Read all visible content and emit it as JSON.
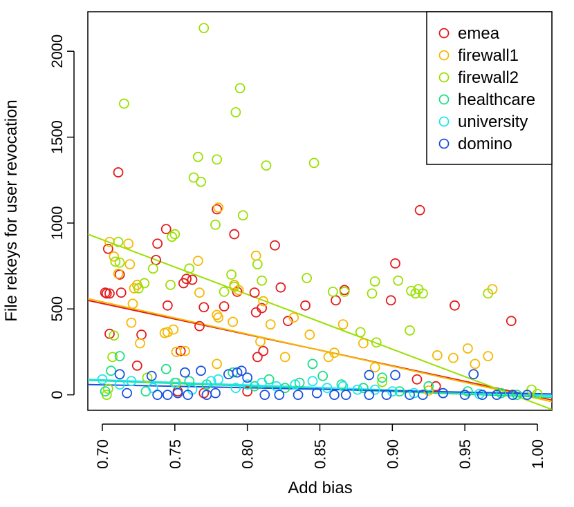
{
  "chart_data": {
    "type": "scatter",
    "title": "",
    "xlabel": "Add bias",
    "ylabel": "File rekeys for user revocation",
    "xlim": [
      0.69,
      1.01
    ],
    "ylim": [
      -90,
      2230
    ],
    "xticks": [
      0.7,
      0.75,
      0.8,
      0.85,
      0.9,
      0.95,
      1.0
    ],
    "yticks": [
      0,
      500,
      1000,
      1500,
      2000
    ],
    "xtick_labels": [
      "0.70",
      "0.75",
      "0.80",
      "0.85",
      "0.90",
      "0.95",
      "1.00"
    ],
    "ytick_labels": [
      "0",
      "500",
      "1000",
      "1500",
      "2000"
    ],
    "grid": false,
    "legend_position": "top-right",
    "series": [
      {
        "name": "emea",
        "color": "#E41A1C",
        "fit": {
          "x0": 0.69,
          "y0": 550,
          "x1": 1.01,
          "y1": -30
        },
        "points": [
          [
            0.702,
            595
          ],
          [
            0.703,
            590
          ],
          [
            0.704,
            850
          ],
          [
            0.705,
            590
          ],
          [
            0.705,
            355
          ],
          [
            0.711,
            1295
          ],
          [
            0.712,
            700
          ],
          [
            0.713,
            595
          ],
          [
            0.724,
            170
          ],
          [
            0.727,
            350
          ],
          [
            0.737,
            785
          ],
          [
            0.738,
            880
          ],
          [
            0.744,
            965
          ],
          [
            0.745,
            520
          ],
          [
            0.754,
            255
          ],
          [
            0.756,
            650
          ],
          [
            0.758,
            675
          ],
          [
            0.762,
            670
          ],
          [
            0.767,
            400
          ],
          [
            0.77,
            510
          ],
          [
            0.779,
            1080
          ],
          [
            0.784,
            515
          ],
          [
            0.791,
            935
          ],
          [
            0.793,
            600
          ],
          [
            0.805,
            595
          ],
          [
            0.806,
            480
          ],
          [
            0.807,
            220
          ],
          [
            0.81,
            505
          ],
          [
            0.811,
            255
          ],
          [
            0.819,
            870
          ],
          [
            0.823,
            625
          ],
          [
            0.828,
            430
          ],
          [
            0.84,
            520
          ],
          [
            0.861,
            550
          ],
          [
            0.867,
            610
          ],
          [
            0.899,
            550
          ],
          [
            0.902,
            765
          ],
          [
            0.919,
            1075
          ],
          [
            0.917,
            90
          ],
          [
            0.93,
            50
          ],
          [
            0.943,
            520
          ],
          [
            0.982,
            430
          ],
          [
            0.752,
            20
          ],
          [
            0.77,
            10
          ],
          [
            0.8,
            20
          ]
        ]
      },
      {
        "name": "firewall1",
        "color": "#F5B800",
        "fit": {
          "x0": 0.69,
          "y0": 560,
          "x1": 1.01,
          "y1": -40
        },
        "points": [
          [
            0.705,
            890
          ],
          [
            0.708,
            805
          ],
          [
            0.711,
            705
          ],
          [
            0.718,
            880
          ],
          [
            0.719,
            760
          ],
          [
            0.72,
            420
          ],
          [
            0.721,
            530
          ],
          [
            0.722,
            620
          ],
          [
            0.724,
            640
          ],
          [
            0.726,
            300
          ],
          [
            0.743,
            360
          ],
          [
            0.745,
            365
          ],
          [
            0.749,
            380
          ],
          [
            0.751,
            250
          ],
          [
            0.757,
            255
          ],
          [
            0.766,
            780
          ],
          [
            0.767,
            595
          ],
          [
            0.779,
            180
          ],
          [
            0.78,
            1090
          ],
          [
            0.779,
            465
          ],
          [
            0.78,
            450
          ],
          [
            0.79,
            425
          ],
          [
            0.791,
            640
          ],
          [
            0.794,
            610
          ],
          [
            0.806,
            810
          ],
          [
            0.809,
            310
          ],
          [
            0.811,
            545
          ],
          [
            0.816,
            410
          ],
          [
            0.826,
            220
          ],
          [
            0.832,
            450
          ],
          [
            0.843,
            350
          ],
          [
            0.856,
            220
          ],
          [
            0.86,
            245
          ],
          [
            0.866,
            410
          ],
          [
            0.88,
            300
          ],
          [
            0.888,
            160
          ],
          [
            0.925,
            25
          ],
          [
            0.931,
            230
          ],
          [
            0.942,
            215
          ],
          [
            0.952,
            270
          ],
          [
            0.957,
            180
          ],
          [
            0.966,
            225
          ],
          [
            0.969,
            615
          ]
        ]
      },
      {
        "name": "firewall2",
        "color": "#99E000",
        "fit": {
          "x0": 0.69,
          "y0": 935,
          "x1": 1.01,
          "y1": -85
        },
        "points": [
          [
            0.703,
            0
          ],
          [
            0.704,
            35
          ],
          [
            0.707,
            220
          ],
          [
            0.708,
            345
          ],
          [
            0.709,
            775
          ],
          [
            0.712,
            770
          ],
          [
            0.715,
            1695
          ],
          [
            0.711,
            890
          ],
          [
            0.725,
            620
          ],
          [
            0.729,
            650
          ],
          [
            0.735,
            735
          ],
          [
            0.747,
            640
          ],
          [
            0.748,
            920
          ],
          [
            0.75,
            935
          ],
          [
            0.76,
            735
          ],
          [
            0.763,
            1265
          ],
          [
            0.766,
            1385
          ],
          [
            0.768,
            1240
          ],
          [
            0.77,
            2135
          ],
          [
            0.778,
            990
          ],
          [
            0.779,
            1370
          ],
          [
            0.784,
            600
          ],
          [
            0.789,
            700
          ],
          [
            0.791,
            630
          ],
          [
            0.792,
            1645
          ],
          [
            0.795,
            1785
          ],
          [
            0.797,
            1045
          ],
          [
            0.807,
            760
          ],
          [
            0.81,
            665
          ],
          [
            0.813,
            1335
          ],
          [
            0.841,
            680
          ],
          [
            0.846,
            1350
          ],
          [
            0.859,
            600
          ],
          [
            0.867,
            600
          ],
          [
            0.878,
            365
          ],
          [
            0.886,
            590
          ],
          [
            0.888,
            660
          ],
          [
            0.889,
            305
          ],
          [
            0.893,
            75
          ],
          [
            0.904,
            665
          ],
          [
            0.912,
            375
          ],
          [
            0.913,
            605
          ],
          [
            0.916,
            590
          ],
          [
            0.918,
            615
          ],
          [
            0.921,
            590
          ],
          [
            0.966,
            590
          ],
          [
            0.996,
            30
          ],
          [
            1.0,
            5
          ],
          [
            0.731,
            100
          ],
          [
            0.751,
            70
          ]
        ]
      },
      {
        "name": "healthcare",
        "color": "#1BE083",
        "fit": {
          "x0": 0.69,
          "y0": 85,
          "x1": 1.01,
          "y1": -15
        },
        "points": [
          [
            0.702,
            20
          ],
          [
            0.706,
            140
          ],
          [
            0.712,
            225
          ],
          [
            0.73,
            20
          ],
          [
            0.744,
            150
          ],
          [
            0.76,
            80
          ],
          [
            0.772,
            60
          ],
          [
            0.79,
            130
          ],
          [
            0.805,
            50
          ],
          [
            0.815,
            90
          ],
          [
            0.826,
            40
          ],
          [
            0.836,
            70
          ],
          [
            0.845,
            180
          ],
          [
            0.852,
            110
          ],
          [
            0.865,
            60
          ],
          [
            0.88,
            40
          ],
          [
            0.893,
            100
          ],
          [
            0.905,
            20
          ],
          [
            0.925,
            50
          ],
          [
            0.952,
            20
          ],
          [
            0.975,
            10
          ],
          [
            0.986,
            0
          ]
        ]
      },
      {
        "name": "university",
        "color": "#1FE4F0",
        "fit": {
          "x0": 0.69,
          "y0": 90,
          "x1": 1.01,
          "y1": -5
        },
        "points": [
          [
            0.7,
            90
          ],
          [
            0.712,
            60
          ],
          [
            0.72,
            80
          ],
          [
            0.735,
            40
          ],
          [
            0.75,
            70
          ],
          [
            0.762,
            30
          ],
          [
            0.775,
            80
          ],
          [
            0.78,
            90
          ],
          [
            0.792,
            40
          ],
          [
            0.8,
            60
          ],
          [
            0.81,
            70
          ],
          [
            0.82,
            50
          ],
          [
            0.833,
            60
          ],
          [
            0.845,
            80
          ],
          [
            0.855,
            40
          ],
          [
            0.866,
            50
          ],
          [
            0.876,
            30
          ],
          [
            0.888,
            30
          ],
          [
            0.9,
            20
          ],
          [
            0.915,
            10
          ],
          [
            0.935,
            10
          ],
          [
            0.96,
            5
          ],
          [
            0.983,
            0
          ]
        ]
      },
      {
        "name": "domino",
        "color": "#1A50E0",
        "fit": {
          "x0": 0.69,
          "y0": 60,
          "x1": 1.01,
          "y1": 5
        },
        "points": [
          [
            0.712,
            120
          ],
          [
            0.717,
            10
          ],
          [
            0.734,
            110
          ],
          [
            0.738,
            0
          ],
          [
            0.745,
            0
          ],
          [
            0.752,
            10
          ],
          [
            0.757,
            130
          ],
          [
            0.759,
            0
          ],
          [
            0.768,
            140
          ],
          [
            0.772,
            0
          ],
          [
            0.778,
            10
          ],
          [
            0.787,
            120
          ],
          [
            0.793,
            130
          ],
          [
            0.796,
            140
          ],
          [
            0.8,
            100
          ],
          [
            0.812,
            0
          ],
          [
            0.822,
            0
          ],
          [
            0.835,
            0
          ],
          [
            0.848,
            10
          ],
          [
            0.86,
            0
          ],
          [
            0.868,
            0
          ],
          [
            0.884,
            115
          ],
          [
            0.884,
            0
          ],
          [
            0.896,
            0
          ],
          [
            0.902,
            115
          ],
          [
            0.912,
            0
          ],
          [
            0.921,
            0
          ],
          [
            0.935,
            10
          ],
          [
            0.95,
            0
          ],
          [
            0.956,
            120
          ],
          [
            0.962,
            0
          ],
          [
            0.972,
            0
          ],
          [
            0.983,
            0
          ],
          [
            0.993,
            0
          ]
        ]
      }
    ]
  }
}
